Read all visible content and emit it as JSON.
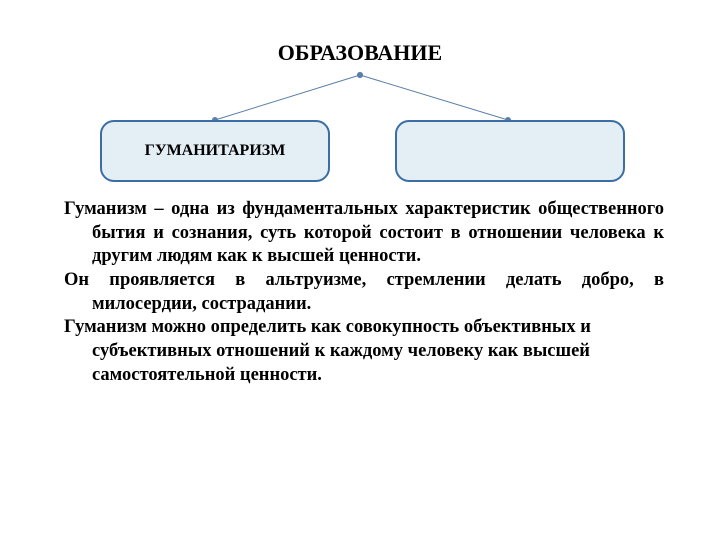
{
  "title": "ОБРАЗОВАНИЕ",
  "diagram": {
    "type": "tree",
    "box_left_label": "ГУМАНИТАРИЗМ",
    "box_right_label": "",
    "box_fill": "#e4eef5",
    "box_border": "#3a6ea5",
    "box_border_width": 2.5,
    "box_border_radius": 14,
    "connector_color": "#5a7fa8",
    "connector_width": 1,
    "endpoint_radius": 3
  },
  "paragraphs": {
    "p1_html": "<b>Гуманизм – одна из фундаментальных характеристик общественного бытия и сознания, суть которой состоит в отношении человека к другим людям как к высшей ценности.</b>",
    "p2_html": "<b>Он проявляется в альтруизме, стремлении делать добро, в милосердии, сострадании.</b>",
    "p3_html": "<b>Гуманизм можно определить как совокупность объективных и субъективных отношений к каждому человеку как высшей самостоятельной ценности.</b>"
  },
  "colors": {
    "background": "#ffffff",
    "text": "#000000"
  },
  "fonts": {
    "title_size": 22,
    "box_label_size": 16,
    "body_size": 18.5
  }
}
